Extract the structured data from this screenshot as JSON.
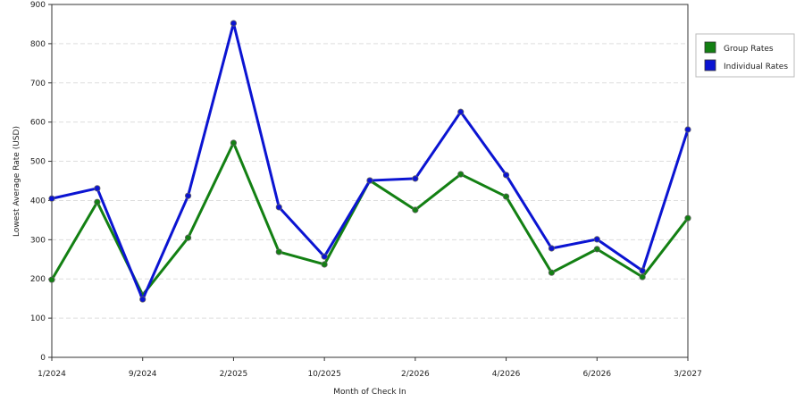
{
  "chart_data": {
    "type": "line",
    "x_label": "Month of Check In",
    "y_label": "Lowest Average Rate (USD)",
    "categories": [
      "1/2024",
      null,
      "9/2024",
      null,
      "2/2025",
      null,
      "10/2025",
      null,
      "2/2026",
      null,
      "4/2026",
      null,
      "6/2026",
      null,
      "3/2027"
    ],
    "series": [
      {
        "name": "Group Rates",
        "color": "#138013",
        "values": [
          198,
          396,
          159,
          305,
          547,
          269,
          237,
          451,
          376,
          467,
          410,
          216,
          276,
          205,
          355
        ]
      },
      {
        "name": "Individual Rates",
        "color": "#0b14d2",
        "values": [
          405,
          431,
          148,
          412,
          852,
          383,
          257,
          451,
          456,
          626,
          465,
          278,
          301,
          221,
          581
        ]
      }
    ],
    "ylim": [
      0,
      900
    ],
    "yticks": [
      0,
      100,
      200,
      300,
      400,
      500,
      600,
      700,
      800,
      900
    ],
    "grid": true,
    "legend": "right"
  }
}
